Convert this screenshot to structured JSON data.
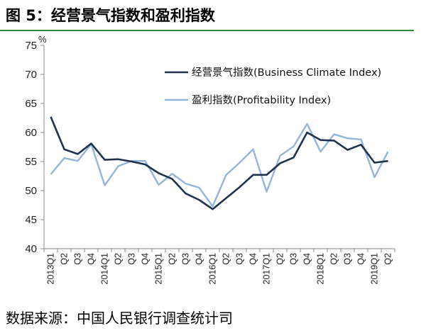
{
  "figure": {
    "title": "图 5：经营景气指数和盈利指数",
    "source": "数据来源：中国人民银行调查统计司"
  },
  "chart_data": {
    "type": "line",
    "ylabel": "%",
    "ylim": [
      40,
      75
    ],
    "yticks": [
      40,
      45,
      50,
      55,
      60,
      65,
      70,
      75
    ],
    "grid": false,
    "legend_position": "top-right",
    "categories": [
      "2013Q1",
      "Q2",
      "Q3",
      "Q4",
      "2014Q1",
      "Q2",
      "Q3",
      "Q4",
      "2015Q1",
      "Q2",
      "Q3",
      "Q4",
      "2016Q1",
      "Q2",
      "Q3",
      "Q4",
      "2017Q1",
      "Q2",
      "Q3",
      "Q4",
      "2018Q1",
      "Q2",
      "Q3",
      "Q4",
      "2019Q1",
      "Q2"
    ],
    "series": [
      {
        "name": "经营景气指数(Business Climate Index)",
        "color": "#1f3350",
        "values": [
          62.7,
          57.1,
          56.3,
          58.1,
          55.3,
          55.4,
          55.0,
          54.5,
          53.0,
          52.0,
          49.5,
          48.4,
          46.8,
          48.7,
          50.6,
          52.7,
          52.7,
          54.7,
          55.7,
          60.0,
          58.7,
          58.6,
          57.0,
          57.9,
          54.8,
          55.1
        ]
      },
      {
        "name": "盈利指数(Profitability Index)",
        "color": "#93b4dc",
        "values": [
          52.8,
          55.6,
          55.1,
          58.0,
          50.9,
          54.2,
          55.1,
          55.1,
          51.0,
          52.9,
          51.2,
          50.5,
          47.3,
          52.7,
          54.8,
          57.1,
          49.8,
          56.0,
          57.6,
          61.5,
          56.7,
          59.7,
          59.0,
          58.8,
          52.3,
          56.7
        ]
      }
    ]
  }
}
